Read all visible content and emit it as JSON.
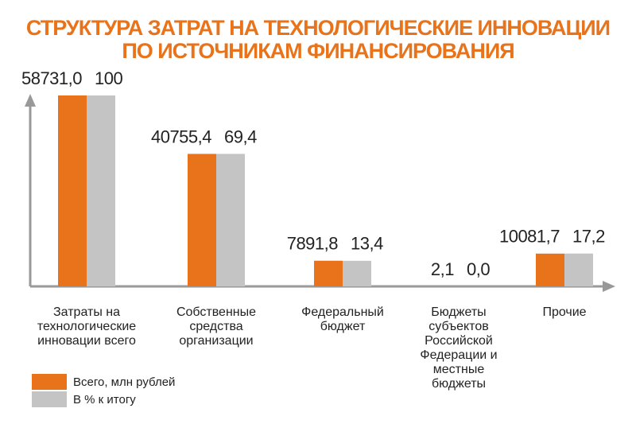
{
  "chart_data": {
    "type": "bar",
    "title": [
      "СТРУКТУРА ЗАТРАТ НА ТЕХНОЛОГИЧЕСКИЕ ИННОВАЦИИ",
      "ПО ИСТОЧНИКАМ ФИНАНСИРОВАНИЯ"
    ],
    "categories": [
      "Затраты на технологические инновации всего",
      "Собственные средства организации",
      "Федеральный бюджет",
      "Бюджеты субъектов Российской Федерации и местные бюджеты",
      "Прочие"
    ],
    "series": [
      {
        "name": "Всего, млн рублей",
        "color": "#e8731a",
        "values": [
          58731.0,
          40755.4,
          7891.8,
          2.1,
          10081.7
        ],
        "value_labels": [
          "58731,0",
          "40755,4",
          "7891,8",
          "2,1",
          "10081,7"
        ]
      },
      {
        "name": "В % к итогу",
        "color": "#c4c4c4",
        "axis": "y2",
        "values": [
          100,
          69.4,
          13.4,
          0.0,
          17.2
        ],
        "value_labels": [
          "100",
          "69,4",
          "13,4",
          "0,0",
          "17,2"
        ]
      }
    ],
    "ylim": [
      0,
      58731
    ],
    "y2lim": [
      0,
      100
    ],
    "legend": "bottom-left"
  }
}
